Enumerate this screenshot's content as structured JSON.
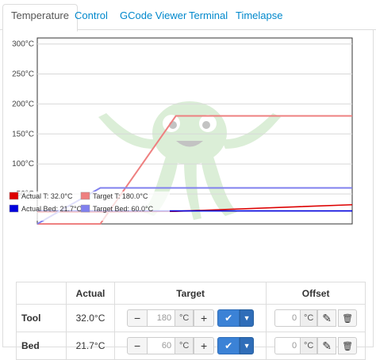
{
  "tabs": [
    {
      "label": "Temperature",
      "active": true
    },
    {
      "label": "Control",
      "active": false
    },
    {
      "label": "GCode Viewer",
      "active": false
    },
    {
      "label": "Terminal",
      "active": false
    },
    {
      "label": "Timelapse",
      "active": false
    }
  ],
  "chart_data": {
    "type": "line",
    "title": "",
    "xlabel": "",
    "ylabel": "",
    "ylim": [
      0,
      310
    ],
    "y_ticks": [
      "300°C",
      "250°C",
      "200°C",
      "150°C",
      "100°C",
      "50°C"
    ],
    "y_tick_values": [
      300,
      250,
      200,
      150,
      100,
      50
    ],
    "grid": true,
    "legend_position": "bottom-left",
    "x": [
      0,
      0.2,
      0.44,
      1.0
    ],
    "series": [
      {
        "name": "Actual T: 32.0°C",
        "color": "#dd0000",
        "values": [
          20,
          20,
          21,
          32
        ]
      },
      {
        "name": "Target T: 180.0°C",
        "color": "#ee8080",
        "values": [
          0,
          0,
          180,
          180
        ]
      },
      {
        "name": "Actual Bed: 21.7°C",
        "color": "#0000dd",
        "values": [
          22,
          21.7,
          21.7,
          21.7
        ]
      },
      {
        "name": "Target Bed: 60.0°C",
        "color": "#8080ee",
        "values": [
          0,
          60,
          60,
          60
        ]
      }
    ]
  },
  "table": {
    "headers": [
      "",
      "Actual",
      "Target",
      "Offset"
    ],
    "unit": "°C",
    "rows": [
      {
        "name": "Tool",
        "actual": "32.0°C",
        "target": "180",
        "offset": "0"
      },
      {
        "name": "Bed",
        "actual": "21.7°C",
        "target": "60",
        "offset": "0"
      }
    ]
  },
  "icons": {
    "minus": "−",
    "plus": "+",
    "check": "✔",
    "caret": "▼",
    "pencil": "✎",
    "trash": "🗑"
  },
  "colors": {
    "link": "#0088cc",
    "primary": "#3b82d6"
  }
}
